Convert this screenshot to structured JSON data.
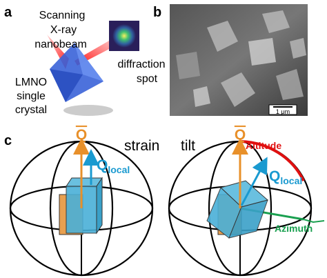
{
  "panel_a": {
    "label": "a",
    "beam": [
      "Scanning",
      "X-ray",
      "nanobeam"
    ],
    "spot": [
      "diffraction",
      "spot"
    ],
    "sample": [
      "LMNO",
      "single",
      "crystal"
    ]
  },
  "panel_b": {
    "label": "b",
    "scale_bar": "1 μm"
  },
  "panel_c": {
    "label": "c",
    "strain": {
      "title": "strain",
      "q_mean": "Q",
      "q_local": {
        "symbol": "Q",
        "subscript": "local"
      }
    },
    "tilt": {
      "title": "tilt",
      "q_mean": "Q",
      "q_local": {
        "symbol": "Q",
        "subscript": "local"
      },
      "altitude": "Altitude",
      "azimuth": "Azimuth"
    }
  }
}
